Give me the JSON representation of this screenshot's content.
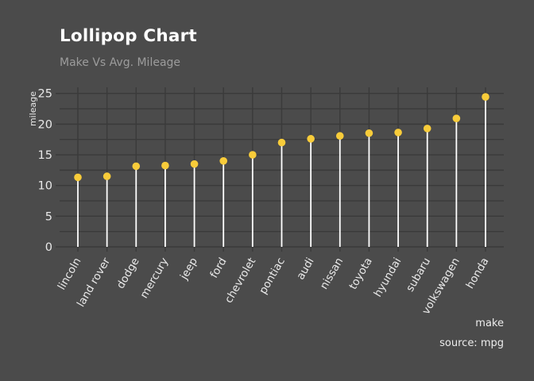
{
  "header": {
    "title": "Lollipop Chart",
    "subtitle": "Make Vs Avg. Mileage"
  },
  "footer": {
    "xlabel": "make",
    "source": "source: mpg"
  },
  "chart_data": {
    "type": "lollipop",
    "title": "Lollipop Chart",
    "subtitle": "Make Vs Avg. Mileage",
    "xlabel": "make",
    "ylabel": "mileage",
    "source": "source: mpg",
    "categories": [
      "lincoln",
      "land rover",
      "dodge",
      "mercury",
      "jeep",
      "ford",
      "chevrolet",
      "pontiac",
      "audi",
      "nissan",
      "toyota",
      "hyundai",
      "subaru",
      "volkswagen",
      "honda"
    ],
    "values": [
      11.33,
      11.5,
      13.14,
      13.25,
      13.5,
      14.0,
      15.0,
      17.0,
      17.61,
      18.08,
      18.53,
      18.64,
      19.29,
      20.93,
      24.44
    ],
    "yticks": [
      0,
      5,
      10,
      15,
      20,
      25
    ],
    "ylim": [
      0,
      26
    ],
    "grid_step": 2.5,
    "grid": true,
    "legend": "none",
    "colors": {
      "background": "#4b4b4b",
      "grid": "#3a3a3a",
      "stem": "#ffffff",
      "dot": "#f8cc3a",
      "tick_label": "#e9e9e9",
      "title": "#ffffff",
      "subtitle": "#9c9c9c",
      "footer_text": "#ececec"
    }
  }
}
